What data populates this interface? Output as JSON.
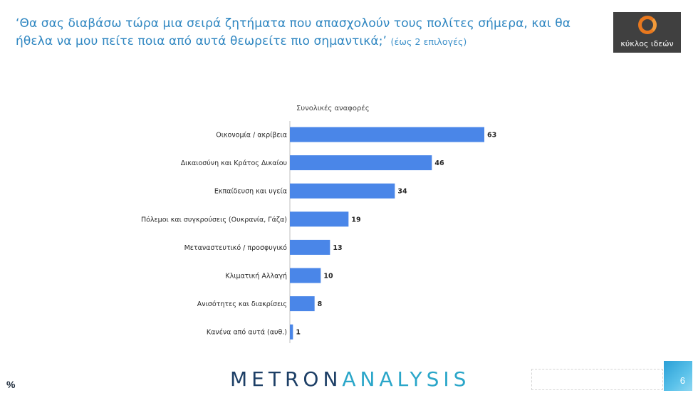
{
  "header": {
    "question": "‘Θα σας διαβάσω τώρα μια σειρά ζητήματα που απασχολούν τους πολίτες σήμερα, και θα ήθελα να μου πείτε ποια από αυτά θεωρείτε πιο σημαντικά;’",
    "note": "(έως 2 επιλογές)"
  },
  "logo": {
    "text": "κύκλος ιδεών",
    "bg_color": "#404040",
    "ring_color": "#e8781e"
  },
  "footer": {
    "brand_part1": "METRON",
    "brand_part2": "ANALYSIS",
    "unit": "%",
    "page_number": "6"
  },
  "chart_data": {
    "type": "bar",
    "orientation": "horizontal",
    "title": "Συνολικές αναφορές",
    "categories": [
      "Οικονομία / ακρίβεια",
      "Δικαιοσύνη και Κράτος Δικαίου",
      "Εκπαίδευση και υγεία",
      "Πόλεμοι και συγκρούσεις (Ουκρανία, Γάζα)",
      "Μεταναστευτικό / προσφυγικό",
      "Κλιματική Αλλαγή",
      "Ανισότητες και διακρίσεις",
      "Κανένα από αυτά (αυθ.)"
    ],
    "values": [
      63,
      46,
      34,
      19,
      13,
      10,
      8,
      1
    ],
    "bar_color": "#4a86e8",
    "grid": false,
    "xlim": [
      0,
      63
    ]
  }
}
